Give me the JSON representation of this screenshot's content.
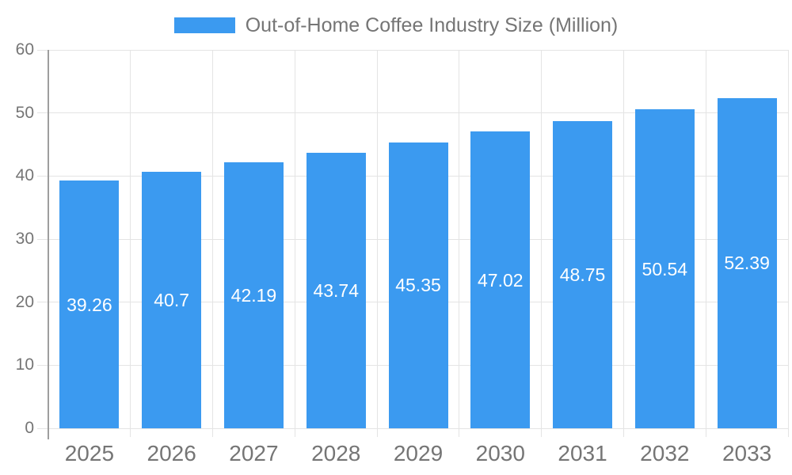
{
  "chart_data": {
    "type": "bar",
    "title": "Out-of-Home Coffee Industry Size (Million)",
    "legend": {
      "label": "Out-of-Home Coffee Industry Size (Million)",
      "position": "top-center"
    },
    "categories": [
      "2025",
      "2026",
      "2027",
      "2028",
      "2029",
      "2030",
      "2031",
      "2032",
      "2033"
    ],
    "series": [
      {
        "name": "Out-of-Home Coffee Industry Size (Million)",
        "values": [
          39.26,
          40.7,
          42.19,
          43.74,
          45.35,
          47.02,
          48.75,
          50.54,
          52.39
        ],
        "value_labels": [
          "39.26",
          "40.7",
          "42.19",
          "43.74",
          "45.35",
          "47.02",
          "48.75",
          "50.54",
          "52.39"
        ]
      }
    ],
    "xlabel": "",
    "ylabel": "",
    "ylim": [
      0,
      60
    ],
    "y_ticks": [
      0,
      10,
      20,
      30,
      40,
      50,
      60
    ],
    "grid": true,
    "annotations": "values shown in white inside bars, vertically centered",
    "colors": {
      "bar": "#3B9AF0",
      "axis_text": "#757575",
      "legend_text": "#757575",
      "gridline": "#E4E4E4",
      "axis_line": "#9E9E9E",
      "annotation_text": "#FFFFFF",
      "background": "#FFFFFF"
    }
  }
}
